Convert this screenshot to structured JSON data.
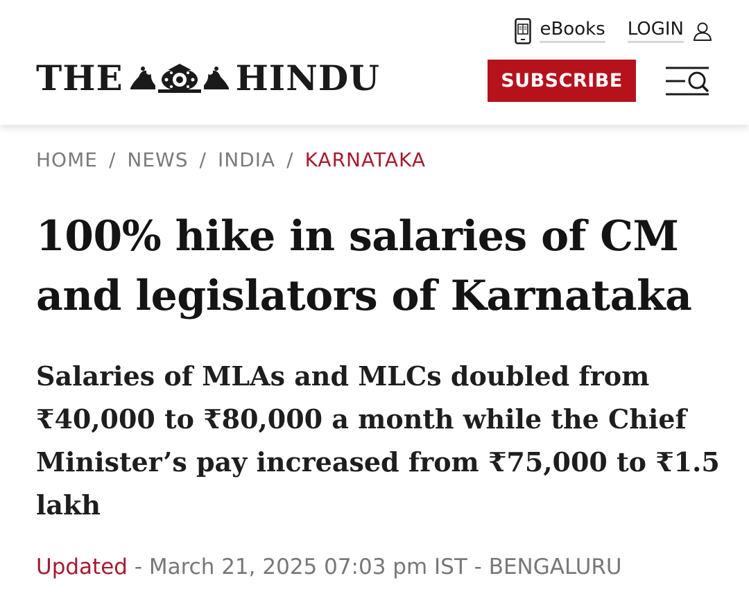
{
  "header": {
    "ebooks_label": "eBooks",
    "login_label": "LOGIN",
    "logo_left": "THE",
    "logo_right": "HINDU",
    "subscribe_label": "SUBSCRIBE",
    "accent_color": "#b5121b"
  },
  "breadcrumb": {
    "items": [
      "HOME",
      "NEWS",
      "INDIA",
      "KARNATAKA"
    ],
    "separator": "/"
  },
  "article": {
    "headline": "100% hike in salaries of CM and legislators of Karnataka",
    "subheadline": "Salaries of MLAs and MLCs doubled from ₹40,000 to ₹80,000 a month while the Chief Minister’s pay increased from ₹75,000 to ₹1.5 lakh",
    "updated_label": "Updated",
    "dash": "-",
    "datetime": "March 21, 2025 07:03 pm IST",
    "location": "BENGALURU"
  },
  "icons": {
    "ebook": "ebook-reader-icon",
    "login": "user-icon",
    "emblem": "emblem-icon",
    "menu": "menu-search-icon"
  }
}
